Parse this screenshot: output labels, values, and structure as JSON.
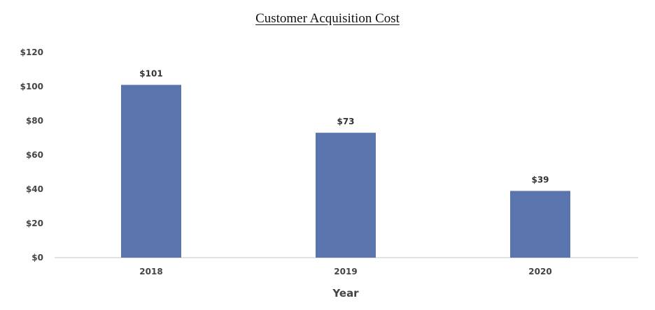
{
  "chart_data": {
    "type": "bar",
    "title": "Customer Acquisition Cost",
    "xlabel": "Year",
    "ylabel": "",
    "categories": [
      "2018",
      "2019",
      "2020"
    ],
    "values": [
      101,
      73,
      39
    ],
    "data_labels": [
      "$101",
      "$73",
      "$39"
    ],
    "ylim": [
      0,
      120
    ],
    "y_ticks": [
      0,
      20,
      40,
      60,
      80,
      100,
      120
    ],
    "y_tick_labels": [
      "$0",
      "$20",
      "$40",
      "$60",
      "$80",
      "$100",
      "$120"
    ],
    "grid": false,
    "legend": "none",
    "bar_color": "#5a74ae",
    "axis_color": "#d9d9d9"
  }
}
